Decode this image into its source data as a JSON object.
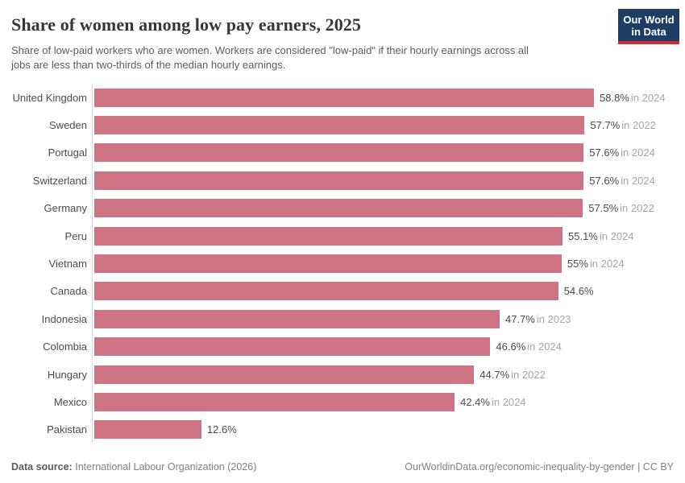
{
  "header": {
    "title": "Share of women among low pay earners, 2025",
    "subtitle": "Share of low-paid workers who are women. Workers are considered \"low-paid\" if their hourly earnings across all\njobs are less than two-thirds of the median hourly earnings."
  },
  "logo": {
    "line1": "Our World",
    "line2": "in Data",
    "bg_color": "#1d3d63",
    "accent_color": "#cf2d33"
  },
  "chart_data": {
    "type": "bar",
    "orientation": "horizontal",
    "title": "Share of women among low pay earners, 2025",
    "unit": "%",
    "xlim": [
      0,
      60
    ],
    "bar_color": "#cd7384",
    "grid": false,
    "legend": "none",
    "categories": [
      "United Kingdom",
      "Sweden",
      "Portugal",
      "Switzerland",
      "Germany",
      "Peru",
      "Vietnam",
      "Canada",
      "Indonesia",
      "Colombia",
      "Hungary",
      "Mexico",
      "Pakistan"
    ],
    "values": [
      58.8,
      57.7,
      57.6,
      57.6,
      57.5,
      55.1,
      55,
      54.6,
      47.7,
      46.6,
      44.7,
      42.4,
      12.6
    ],
    "rows": [
      {
        "country": "United Kingdom",
        "value": 58.8,
        "value_label": "58.8%",
        "year_label": "in 2024"
      },
      {
        "country": "Sweden",
        "value": 57.7,
        "value_label": "57.7%",
        "year_label": "in 2022"
      },
      {
        "country": "Portugal",
        "value": 57.6,
        "value_label": "57.6%",
        "year_label": "in 2024"
      },
      {
        "country": "Switzerland",
        "value": 57.6,
        "value_label": "57.6%",
        "year_label": "in 2024"
      },
      {
        "country": "Germany",
        "value": 57.5,
        "value_label": "57.5%",
        "year_label": "in 2022"
      },
      {
        "country": "Peru",
        "value": 55.1,
        "value_label": "55.1%",
        "year_label": "in 2024"
      },
      {
        "country": "Vietnam",
        "value": 55,
        "value_label": "55%",
        "year_label": "in 2024"
      },
      {
        "country": "Canada",
        "value": 54.6,
        "value_label": "54.6%",
        "year_label": ""
      },
      {
        "country": "Indonesia",
        "value": 47.7,
        "value_label": "47.7%",
        "year_label": "in 2023"
      },
      {
        "country": "Colombia",
        "value": 46.6,
        "value_label": "46.6%",
        "year_label": "in 2024"
      },
      {
        "country": "Hungary",
        "value": 44.7,
        "value_label": "44.7%",
        "year_label": "in 2022"
      },
      {
        "country": "Mexico",
        "value": 42.4,
        "value_label": "42.4%",
        "year_label": "in 2024"
      },
      {
        "country": "Pakistan",
        "value": 12.6,
        "value_label": "12.6%",
        "year_label": ""
      }
    ]
  },
  "footer": {
    "source_label": "Data source:",
    "source_value": "International Labour Organization (2026)",
    "url": "OurWorldinData.org/economic-inequality-by-gender",
    "license": "| CC BY"
  }
}
